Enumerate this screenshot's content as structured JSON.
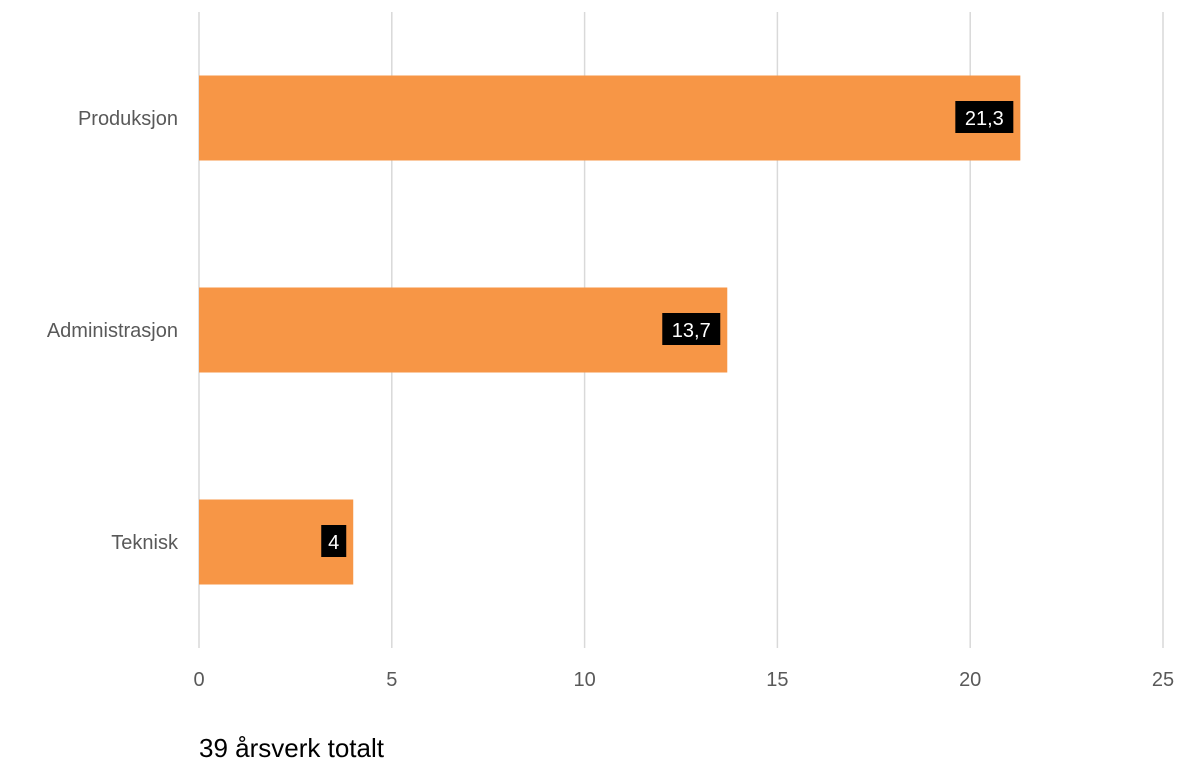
{
  "colors": {
    "bar": "#f79646",
    "label_box": "#000000",
    "grid": "#d9d9d9",
    "text": "#595959"
  },
  "chart_data": {
    "type": "bar",
    "orientation": "horizontal",
    "categories": [
      "Produksjon",
      "Administrasjon",
      "Teknisk"
    ],
    "values": [
      21.3,
      13.7,
      4
    ],
    "data_labels": [
      "21,3",
      "13,7",
      "4"
    ],
    "xlim": [
      0,
      25
    ],
    "xticks": [
      0,
      5,
      10,
      15,
      20,
      25
    ],
    "grid": "vertical",
    "legend": "none"
  },
  "footnote": "39 årsverk totalt"
}
